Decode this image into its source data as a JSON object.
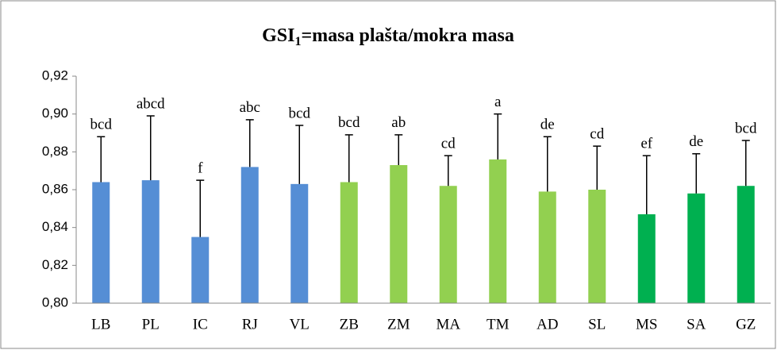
{
  "chart_data": {
    "type": "bar",
    "title": [
      "GSI",
      "1",
      "=masa plašta/mokra masa"
    ],
    "categories": [
      "LB",
      "PL",
      "IC",
      "RJ",
      "VL",
      "ZB",
      "ZM",
      "MA",
      "TM",
      "AD",
      "SL",
      "MS",
      "SA",
      "GZ"
    ],
    "values": [
      0.864,
      0.865,
      0.835,
      0.872,
      0.863,
      0.864,
      0.873,
      0.862,
      0.876,
      0.859,
      0.86,
      0.847,
      0.858,
      0.862
    ],
    "errors": [
      0.024,
      0.034,
      0.03,
      0.025,
      0.031,
      0.025,
      0.016,
      0.016,
      0.024,
      0.029,
      0.023,
      0.031,
      0.021,
      0.024
    ],
    "annotations": [
      "bcd",
      "abcd",
      "f",
      "abc",
      "bcd",
      "bcd",
      "ab",
      "cd",
      "a",
      "de",
      "cd",
      "ef",
      "de",
      "bcd"
    ],
    "colors": [
      "#558ed5",
      "#558ed5",
      "#558ed5",
      "#558ed5",
      "#558ed5",
      "#92d050",
      "#92d050",
      "#92d050",
      "#92d050",
      "#92d050",
      "#92d050",
      "#00b050",
      "#00b050",
      "#00b050"
    ],
    "ylim": [
      0.8,
      0.92
    ],
    "yticks": [
      {
        "value": 0.8,
        "label": "0,80"
      },
      {
        "value": 0.82,
        "label": "0,82"
      },
      {
        "value": 0.84,
        "label": "0,84"
      },
      {
        "value": 0.86,
        "label": "0,86"
      },
      {
        "value": 0.88,
        "label": "0,88"
      },
      {
        "value": 0.9,
        "label": "0,90"
      },
      {
        "value": 0.92,
        "label": "0,92"
      }
    ],
    "grid": false
  }
}
